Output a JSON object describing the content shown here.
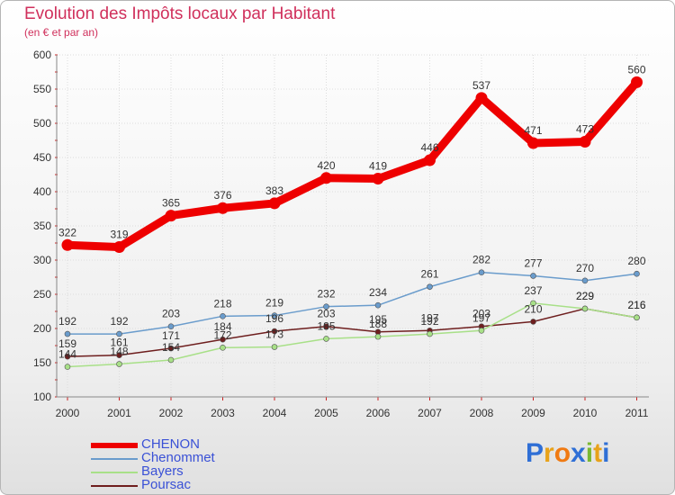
{
  "chart_data": {
    "type": "line",
    "title": "Evolution des Impôts locaux par Habitant",
    "subtitle": "(en € et par an)",
    "xlabel": "",
    "ylabel": "",
    "ylim": [
      100,
      600
    ],
    "yticks": [
      100,
      150,
      200,
      250,
      300,
      350,
      400,
      450,
      500,
      550,
      600
    ],
    "x": [
      "2000",
      "2001",
      "2002",
      "2003",
      "2004",
      "2005",
      "2006",
      "2007",
      "2008",
      "2009",
      "2010",
      "2011"
    ],
    "series": [
      {
        "name": "CHENON",
        "color": "#ee0000",
        "values": [
          322,
          319,
          365,
          376,
          383,
          420,
          419,
          446,
          537,
          471,
          473,
          560
        ]
      },
      {
        "name": "Chenommet",
        "color": "#6a9ccc",
        "values": [
          192,
          192,
          203,
          218,
          219,
          232,
          234,
          261,
          282,
          277,
          270,
          280
        ]
      },
      {
        "name": "Bayers",
        "color": "#a8e088",
        "values": [
          144,
          148,
          154,
          172,
          173,
          185,
          188,
          192,
          197,
          237,
          229,
          216
        ]
      },
      {
        "name": "Poursac",
        "color": "#6e1e1e",
        "values": [
          159,
          161,
          171,
          184,
          196,
          203,
          195,
          197,
          203,
          210,
          229,
          216
        ]
      }
    ],
    "labels": {
      "CHENON": [
        "322",
        "319",
        "365",
        "376",
        "383",
        "420",
        "419",
        "446",
        "537",
        "471",
        "473",
        "560"
      ],
      "Chenommet": [
        "192",
        "192",
        "203",
        "218",
        "219",
        "232",
        "234",
        "261",
        "282",
        "277",
        "270",
        "280"
      ],
      "Bayers": [
        "144",
        "148",
        "154",
        "172",
        "173",
        "185",
        "188",
        "192",
        "197",
        "237",
        "229",
        "216"
      ],
      "Poursac": [
        "159",
        "161",
        "171",
        "184",
        "196",
        "203",
        "195",
        "197",
        "203",
        "210",
        "229",
        "216"
      ]
    },
    "legend_position": "bottom-left"
  },
  "legend": [
    {
      "label": "CHENON",
      "color": "#ee0000"
    },
    {
      "label": "Chenommet",
      "color": "#6a9ccc"
    },
    {
      "label": "Bayers",
      "color": "#a8e088"
    },
    {
      "label": "Poursac",
      "color": "#6e1e1e"
    }
  ],
  "logo": {
    "letters": [
      "P",
      "r",
      "o",
      "x",
      "i",
      "t",
      "i"
    ],
    "colors": [
      "#2f6fd6",
      "#e8a21a",
      "#f07a12",
      "#2f6fd6",
      "#7ab830",
      "#e8a21a",
      "#2f6fd6"
    ]
  }
}
